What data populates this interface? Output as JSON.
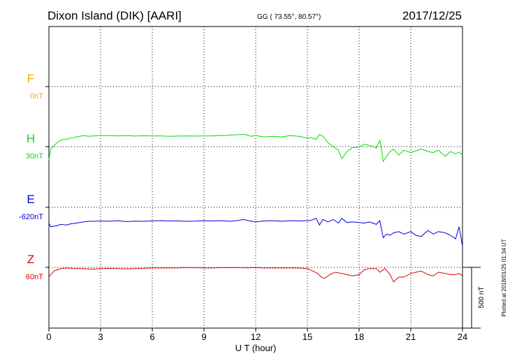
{
  "header": {
    "station": "Dixon Island (DIK)  [AARI]",
    "coords": "GG ( 73.55°,  80.57°)",
    "date": "2017/12/25"
  },
  "plotted_note": "Plotted at 2018/01/25 01:34 UT",
  "scale_label": "500 nT",
  "chart_data": {
    "type": "line",
    "xlabel": "U T (hour)",
    "xlim": [
      0,
      24
    ],
    "xticks": [
      0,
      3,
      6,
      9,
      12,
      15,
      18,
      21,
      24
    ],
    "grid": true,
    "panel_labels": [
      {
        "name": "F",
        "value": "0nT",
        "color": "#f5a800"
      },
      {
        "name": "H",
        "value": "30nT",
        "color": "#22cc22"
      },
      {
        "name": "E",
        "value": "-620nT",
        "color": "#0000cc"
      },
      {
        "name": "Z",
        "value": "60nT",
        "color": "#dd0000"
      }
    ],
    "series": [
      {
        "name": "H",
        "color": "#00dd00",
        "x": [
          0,
          0.1,
          0.3,
          0.5,
          0.7,
          1,
          1.3,
          1.6,
          2,
          2.3,
          2.6,
          3,
          3.5,
          4,
          4.5,
          5,
          5.5,
          6,
          6.5,
          7,
          7.5,
          8,
          8.5,
          9,
          9.5,
          10,
          10.2,
          10.5,
          11,
          11.4,
          11.7,
          12,
          12.5,
          13,
          13.5,
          14,
          14.5,
          15,
          15.2,
          15.5,
          15.7,
          15.9,
          16.2,
          16.5,
          16.8,
          17,
          17.3,
          17.6,
          18,
          18.3,
          18.6,
          19,
          19.2,
          19.25,
          19.4,
          19.6,
          19.8,
          20,
          20.3,
          20.6,
          21,
          21.3,
          21.6,
          22,
          22.3,
          22.6,
          23,
          23.3,
          23.6,
          23.8,
          24
        ],
        "y": [
          -110,
          -20,
          10,
          35,
          55,
          60,
          70,
          80,
          90,
          85,
          88,
          90,
          90,
          88,
          90,
          87,
          89,
          88,
          88,
          85,
          87,
          88,
          87,
          88,
          88,
          92,
          90,
          95,
          98,
          100,
          85,
          90,
          80,
          85,
          80,
          90,
          85,
          70,
          75,
          60,
          100,
          85,
          30,
          0,
          -30,
          -100,
          -40,
          -10,
          -5,
          20,
          10,
          -10,
          50,
          20,
          -120,
          -80,
          -40,
          -20,
          -70,
          -30,
          -50,
          -35,
          -20,
          -40,
          -50,
          -30,
          -80,
          -40,
          -60,
          -45,
          -70
        ]
      },
      {
        "name": "E",
        "color": "#0000dd",
        "x": [
          0,
          0.1,
          0.3,
          0.5,
          0.7,
          1,
          1.3,
          1.6,
          2,
          2.3,
          2.6,
          3,
          3.5,
          4,
          4.5,
          5,
          5.5,
          6,
          6.5,
          7,
          7.5,
          8,
          8.5,
          9,
          9.5,
          10,
          10.5,
          11,
          11.3,
          11.6,
          12,
          12.5,
          13,
          13.5,
          14,
          14.5,
          15,
          15.2,
          15.5,
          15.7,
          15.9,
          16.2,
          16.5,
          16.8,
          17,
          17.3,
          17.6,
          18,
          18.3,
          18.6,
          19,
          19.2,
          19.4,
          19.6,
          19.8,
          20,
          20.3,
          20.6,
          21,
          21.3,
          21.6,
          22,
          22.3,
          22.6,
          23,
          23.3,
          23.6,
          23.8,
          24
        ],
        "y": [
          -130,
          -160,
          -155,
          -150,
          -140,
          -145,
          -135,
          -130,
          -120,
          -115,
          -115,
          -112,
          -115,
          -110,
          -118,
          -114,
          -115,
          -112,
          -110,
          -112,
          -112,
          -115,
          -113,
          -110,
          -112,
          -110,
          -115,
          -108,
          -100,
          -110,
          -120,
          -112,
          -110,
          -115,
          -110,
          -112,
          -110,
          -108,
          -90,
          -145,
          -100,
          -120,
          -100,
          -130,
          -90,
          -125,
          -120,
          -125,
          -130,
          -120,
          -140,
          -110,
          -250,
          -220,
          -230,
          -210,
          -200,
          -220,
          -200,
          -230,
          -240,
          -190,
          -220,
          -200,
          -210,
          -230,
          -260,
          -160,
          -320
        ]
      },
      {
        "name": "Z",
        "color": "#dd0000",
        "x": [
          0,
          0.1,
          0.3,
          0.5,
          0.7,
          1,
          1.5,
          2,
          2.5,
          3,
          3.5,
          4,
          4.5,
          5,
          5.5,
          6,
          6.5,
          7,
          7.5,
          8,
          8.5,
          9,
          9.5,
          10,
          10.5,
          11,
          11.5,
          12,
          12.5,
          13,
          13.5,
          14,
          14.5,
          15,
          15.3,
          15.6,
          15.8,
          16,
          16.3,
          16.6,
          17,
          17.3,
          17.6,
          18,
          18.3,
          18.6,
          19,
          19.2,
          19.5,
          19.8,
          20,
          20.3,
          20.6,
          21,
          21.3,
          21.6,
          22,
          22.3,
          22.6,
          23,
          23.3,
          23.6,
          23.8,
          24
        ],
        "y": [
          -80,
          -60,
          -30,
          -20,
          -10,
          -5,
          -10,
          -10,
          -15,
          -10,
          -8,
          -10,
          -12,
          -10,
          -8,
          -5,
          -5,
          -5,
          -4,
          -2,
          -3,
          -5,
          -5,
          -2,
          -3,
          -2,
          -4,
          -2,
          -5,
          -5,
          -5,
          -5,
          -5,
          -10,
          -30,
          -50,
          -80,
          -90,
          -60,
          -40,
          -50,
          -60,
          -70,
          -60,
          -20,
          -10,
          -10,
          -40,
          -10,
          -60,
          -120,
          -80,
          -80,
          -50,
          -40,
          -30,
          -60,
          -70,
          -40,
          -50,
          -60,
          -60,
          -50,
          -70
        ]
      }
    ]
  }
}
